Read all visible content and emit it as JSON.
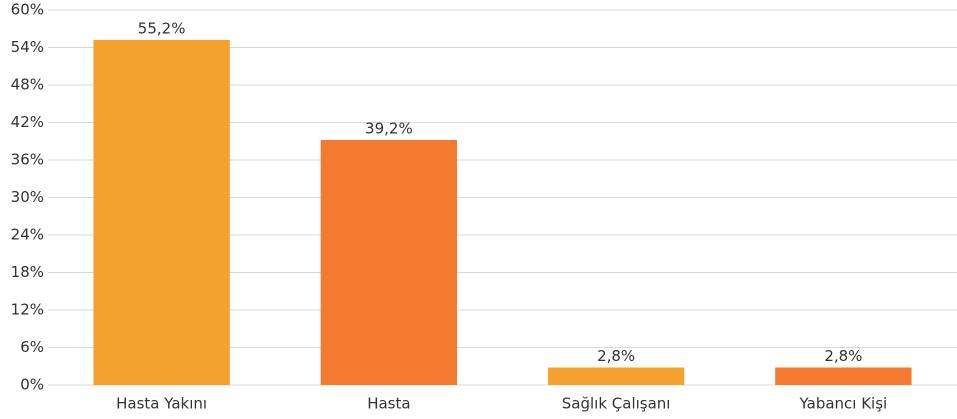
{
  "chart_data": {
    "type": "bar",
    "categories": [
      "Hasta Yakını",
      "Hasta",
      "Sağlık Çalışanı",
      "Yabancı Kişi"
    ],
    "values": [
      55.2,
      39.2,
      2.8,
      2.8
    ],
    "value_labels": [
      "55,2%",
      "39,2%",
      "2,8%",
      "2,8%"
    ],
    "colors": [
      "#f4a22d",
      "#f47a30",
      "#f4a22d",
      "#f47a30"
    ],
    "ylim": [
      0,
      60
    ],
    "yticks": [
      {
        "value": 0,
        "label": "0%"
      },
      {
        "value": 6,
        "label": "6%"
      },
      {
        "value": 12,
        "label": "12%"
      },
      {
        "value": 18,
        "label": "18%"
      },
      {
        "value": 24,
        "label": "24%"
      },
      {
        "value": 30,
        "label": "30%"
      },
      {
        "value": 36,
        "label": "36%"
      },
      {
        "value": 42,
        "label": "42%"
      },
      {
        "value": 48,
        "label": "48%"
      },
      {
        "value": 54,
        "label": "54%"
      },
      {
        "value": 60,
        "label": "60%"
      }
    ],
    "grid": true
  }
}
